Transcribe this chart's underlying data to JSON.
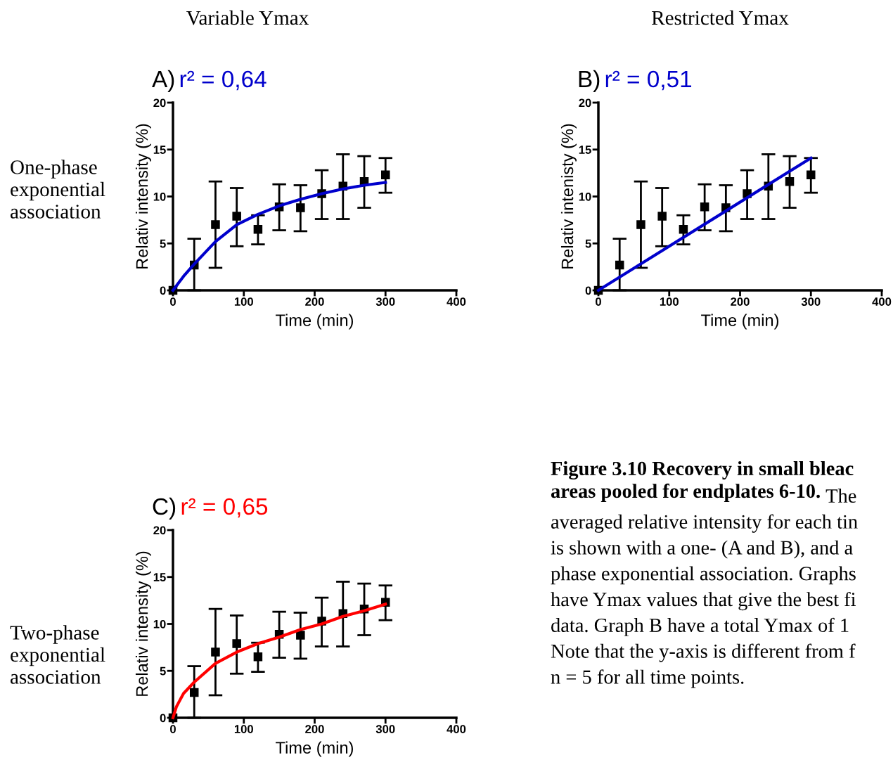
{
  "chart_data": [
    {
      "type": "scatter",
      "title": "A)",
      "subtitle": "r² = 0,64",
      "xlabel": "Time (min)",
      "ylabel": "Relativ intensity (%)",
      "xlim": [
        0,
        400
      ],
      "ylim": [
        0,
        20
      ],
      "xticks": [
        0,
        100,
        200,
        300,
        400
      ],
      "yticks": [
        0,
        5,
        10,
        15,
        20
      ],
      "grid": false,
      "legend": false,
      "annotations": [
        "Variable Ymax",
        "One-phase\nexponential\nassociation"
      ],
      "series": [
        {
          "color": "#000000",
          "marker": "square",
          "x": [
            0,
            30,
            60,
            90,
            120,
            150,
            180,
            210,
            240,
            270,
            300
          ],
          "values": [
            0,
            2.7,
            7.0,
            7.9,
            6.5,
            8.9,
            8.8,
            10.3,
            11.1,
            11.6,
            12.3
          ],
          "errors": [
            null,
            [
              0,
              5.5
            ],
            [
              2.4,
              11.6
            ],
            [
              4.7,
              10.9
            ],
            [
              4.9,
              8.0
            ],
            [
              6.4,
              11.3
            ],
            [
              6.3,
              11.2
            ],
            [
              7.6,
              12.8
            ],
            [
              7.6,
              14.5
            ],
            [
              8.8,
              14.3
            ],
            [
              10.4,
              14.1
            ]
          ]
        },
        {
          "type": "line",
          "color": "#0000cc",
          "marker": "none",
          "x": [
            0,
            15,
            30,
            60,
            90,
            120,
            150,
            180,
            210,
            240,
            270,
            300
          ],
          "values": [
            0,
            1.5,
            2.8,
            5.2,
            7.0,
            8.1,
            9.0,
            9.7,
            10.3,
            10.8,
            11.2,
            11.5
          ]
        }
      ]
    },
    {
      "type": "scatter",
      "title": "B)",
      "subtitle": "r² = 0,51",
      "xlabel": "Time (min)",
      "ylabel": "Relativ intenisty (%)",
      "xlim": [
        0,
        400
      ],
      "ylim": [
        0,
        20
      ],
      "xticks": [
        0,
        100,
        200,
        300,
        400
      ],
      "yticks": [
        0,
        5,
        10,
        15,
        20
      ],
      "grid": false,
      "legend": false,
      "annotations": [
        "Restricted Ymax"
      ],
      "series": [
        {
          "color": "#000000",
          "marker": "square",
          "x": [
            0,
            30,
            60,
            90,
            120,
            150,
            180,
            210,
            240,
            270,
            300
          ],
          "values": [
            0,
            2.7,
            7.0,
            7.9,
            6.5,
            8.9,
            8.8,
            10.3,
            11.1,
            11.6,
            12.3
          ],
          "errors": [
            null,
            [
              0,
              5.5
            ],
            [
              2.4,
              11.6
            ],
            [
              4.7,
              10.9
            ],
            [
              4.9,
              8.0
            ],
            [
              6.4,
              11.3
            ],
            [
              6.3,
              11.2
            ],
            [
              7.6,
              12.8
            ],
            [
              7.6,
              14.5
            ],
            [
              8.8,
              14.3
            ],
            [
              10.4,
              14.1
            ]
          ]
        },
        {
          "type": "line",
          "color": "#0000cc",
          "marker": "none",
          "x": [
            0,
            300
          ],
          "values": [
            0,
            14.1
          ]
        }
      ]
    },
    {
      "type": "scatter",
      "title": "C)",
      "subtitle": "r² = 0,65",
      "xlabel": "Time (min)",
      "ylabel": "Relativ intensity (%)",
      "xlim": [
        0,
        400
      ],
      "ylim": [
        0,
        20
      ],
      "xticks": [
        0,
        100,
        200,
        300,
        400
      ],
      "yticks": [
        0,
        5,
        10,
        15,
        20
      ],
      "grid": false,
      "legend": false,
      "annotations": [
        "Two-phase\nexponential\nassociation"
      ],
      "series": [
        {
          "color": "#000000",
          "marker": "square",
          "x": [
            0,
            30,
            60,
            90,
            120,
            150,
            180,
            210,
            240,
            270,
            300
          ],
          "values": [
            0,
            2.7,
            7.0,
            7.9,
            6.5,
            8.9,
            8.8,
            10.3,
            11.1,
            11.6,
            12.3
          ],
          "errors": [
            null,
            [
              0,
              5.5
            ],
            [
              2.4,
              11.6
            ],
            [
              4.7,
              10.9
            ],
            [
              4.9,
              8.0
            ],
            [
              6.4,
              11.3
            ],
            [
              6.3,
              11.2
            ],
            [
              7.6,
              12.8
            ],
            [
              7.6,
              14.5
            ],
            [
              8.8,
              14.3
            ],
            [
              10.4,
              14.1
            ]
          ]
        },
        {
          "type": "line",
          "color": "#ff0000",
          "marker": "none",
          "x": [
            0,
            5,
            15,
            30,
            60,
            90,
            120,
            150,
            180,
            210,
            240,
            270,
            300
          ],
          "values": [
            0,
            1.2,
            2.6,
            3.8,
            5.8,
            7.0,
            7.9,
            8.6,
            9.4,
            10.0,
            10.8,
            11.4,
            12.1
          ]
        }
      ]
    },
    {
      "type": "other",
      "title": "Figure 3.10 Recovery in small bleac\nareas pooled for endplates 6-10.",
      "annotations": [
        "The",
        "averaged relative intensity for each tin",
        "is shown with a one- (A and B), and a",
        "phase exponential association. Graphs",
        "have Ymax values that give the best fi",
        "data. Graph B have a total Ymax of 1",
        "Note that the y-axis is different from f",
        "n = 5 for all time points."
      ]
    }
  ]
}
